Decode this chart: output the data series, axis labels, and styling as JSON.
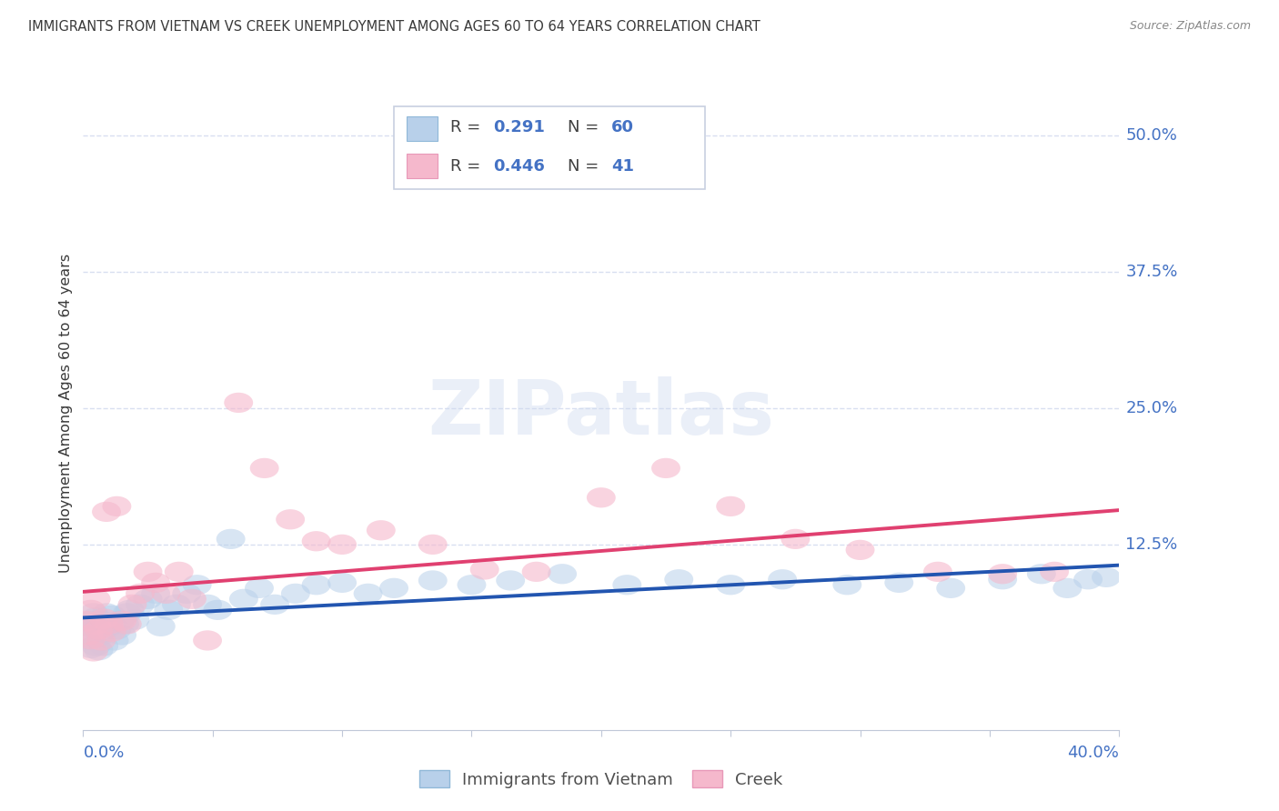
{
  "title": "IMMIGRANTS FROM VIETNAM VS CREEK UNEMPLOYMENT AMONG AGES 60 TO 64 YEARS CORRELATION CHART",
  "source": "Source: ZipAtlas.com",
  "ylabel": "Unemployment Among Ages 60 to 64 years",
  "ytick_values": [
    0.125,
    0.25,
    0.375,
    0.5
  ],
  "ytick_labels": [
    "12.5%",
    "25.0%",
    "37.5%",
    "50.0%"
  ],
  "xlim": [
    0.0,
    0.4
  ],
  "ylim": [
    -0.045,
    0.535
  ],
  "watermark": "ZIPatlas",
  "blue_scatter_color": "#b8d0ea",
  "pink_scatter_color": "#f5b8cc",
  "blue_line_color": "#2255b0",
  "pink_line_color": "#e04070",
  "title_color": "#3a3a3a",
  "source_color": "#888888",
  "tick_label_color": "#4472c4",
  "grid_color": "#d8dff0",
  "legend_border_color": "#c8d0e0",
  "vietnam_x": [
    0.001,
    0.002,
    0.003,
    0.003,
    0.004,
    0.004,
    0.005,
    0.005,
    0.006,
    0.006,
    0.007,
    0.007,
    0.008,
    0.008,
    0.009,
    0.01,
    0.011,
    0.012,
    0.013,
    0.014,
    0.015,
    0.016,
    0.017,
    0.018,
    0.02,
    0.022,
    0.025,
    0.028,
    0.03,
    0.033,
    0.036,
    0.04,
    0.044,
    0.048,
    0.052,
    0.057,
    0.062,
    0.068,
    0.074,
    0.082,
    0.09,
    0.1,
    0.11,
    0.12,
    0.135,
    0.15,
    0.165,
    0.185,
    0.21,
    0.23,
    0.25,
    0.27,
    0.295,
    0.315,
    0.335,
    0.355,
    0.37,
    0.38,
    0.388,
    0.395
  ],
  "vietnam_y": [
    0.045,
    0.038,
    0.055,
    0.03,
    0.048,
    0.062,
    0.032,
    0.058,
    0.028,
    0.052,
    0.042,
    0.055,
    0.032,
    0.047,
    0.062,
    0.05,
    0.06,
    0.037,
    0.047,
    0.055,
    0.042,
    0.052,
    0.062,
    0.065,
    0.056,
    0.07,
    0.075,
    0.08,
    0.05,
    0.065,
    0.07,
    0.08,
    0.088,
    0.07,
    0.065,
    0.13,
    0.075,
    0.085,
    0.07,
    0.08,
    0.088,
    0.09,
    0.08,
    0.085,
    0.092,
    0.088,
    0.092,
    0.098,
    0.088,
    0.093,
    0.088,
    0.093,
    0.088,
    0.09,
    0.085,
    0.093,
    0.098,
    0.085,
    0.093,
    0.095
  ],
  "creek_x": [
    0.001,
    0.002,
    0.003,
    0.003,
    0.004,
    0.005,
    0.005,
    0.006,
    0.007,
    0.008,
    0.009,
    0.01,
    0.011,
    0.013,
    0.015,
    0.017,
    0.019,
    0.022,
    0.025,
    0.028,
    0.032,
    0.037,
    0.042,
    0.048,
    0.06,
    0.07,
    0.08,
    0.09,
    0.1,
    0.115,
    0.135,
    0.155,
    0.175,
    0.2,
    0.225,
    0.25,
    0.275,
    0.3,
    0.33,
    0.355,
    0.375
  ],
  "creek_y": [
    0.055,
    0.042,
    0.038,
    0.065,
    0.027,
    0.052,
    0.075,
    0.047,
    0.037,
    0.057,
    0.155,
    0.052,
    0.045,
    0.16,
    0.055,
    0.052,
    0.07,
    0.08,
    0.1,
    0.09,
    0.08,
    0.1,
    0.075,
    0.037,
    0.255,
    0.195,
    0.148,
    0.128,
    0.125,
    0.138,
    0.125,
    0.102,
    0.1,
    0.168,
    0.195,
    0.16,
    0.13,
    0.12,
    0.1,
    0.098,
    0.1
  ]
}
